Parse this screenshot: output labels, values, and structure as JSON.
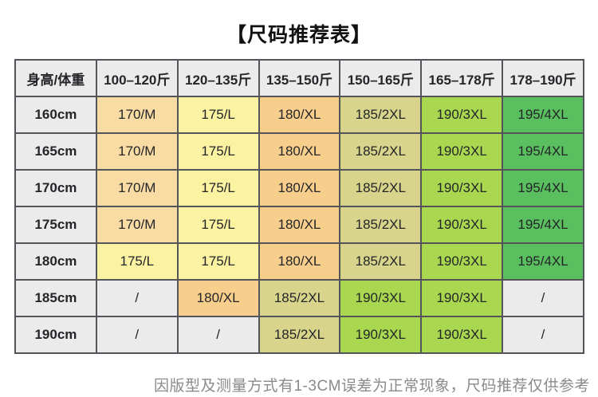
{
  "title": "【尺码推荐表】",
  "footer_note": "因版型及测量方式有1-3CM误差为正常现象，尺码推荐仅供参考",
  "colors": {
    "gray": "#ebebeb",
    "peach": "#f9dca4",
    "yellow": "#fbf2a2",
    "orange": "#f8ce8d",
    "khaki": "#d8d48b",
    "lime": "#a9d750",
    "green": "#5abf5f",
    "border": "#54555a",
    "header_bg": "#ebebeb",
    "cell_text": "#232528",
    "footer_text": "#8a8a8a"
  },
  "chart_data": {
    "type": "table",
    "title": "【尺码推荐表】",
    "columns": [
      "身高/体重",
      "100–120斤",
      "120–135斤",
      "135–150斤",
      "150–165斤",
      "165–178斤",
      "178–190斤"
    ],
    "rows": [
      {
        "label": "160cm",
        "cells": [
          {
            "t": "170/M",
            "c": "peach"
          },
          {
            "t": "175/L",
            "c": "yellow"
          },
          {
            "t": "180/XL",
            "c": "orange"
          },
          {
            "t": "185/2XL",
            "c": "khaki"
          },
          {
            "t": "190/3XL",
            "c": "lime"
          },
          {
            "t": "195/4XL",
            "c": "green"
          }
        ]
      },
      {
        "label": "165cm",
        "cells": [
          {
            "t": "170/M",
            "c": "peach"
          },
          {
            "t": "175/L",
            "c": "yellow"
          },
          {
            "t": "180/XL",
            "c": "orange"
          },
          {
            "t": "185/2XL",
            "c": "khaki"
          },
          {
            "t": "190/3XL",
            "c": "lime"
          },
          {
            "t": "195/4XL",
            "c": "green"
          }
        ]
      },
      {
        "label": "170cm",
        "cells": [
          {
            "t": "170/M",
            "c": "peach"
          },
          {
            "t": "175/L",
            "c": "yellow"
          },
          {
            "t": "180/XL",
            "c": "orange"
          },
          {
            "t": "185/2XL",
            "c": "khaki"
          },
          {
            "t": "190/3XL",
            "c": "lime"
          },
          {
            "t": "195/4XL",
            "c": "green"
          }
        ]
      },
      {
        "label": "175cm",
        "cells": [
          {
            "t": "170/M",
            "c": "peach"
          },
          {
            "t": "175/L",
            "c": "yellow"
          },
          {
            "t": "180/XL",
            "c": "orange"
          },
          {
            "t": "185/2XL",
            "c": "khaki"
          },
          {
            "t": "190/3XL",
            "c": "lime"
          },
          {
            "t": "195/4XL",
            "c": "green"
          }
        ]
      },
      {
        "label": "180cm",
        "cells": [
          {
            "t": "175/L",
            "c": "yellow"
          },
          {
            "t": "175/L",
            "c": "yellow"
          },
          {
            "t": "180/XL",
            "c": "orange"
          },
          {
            "t": "185/2XL",
            "c": "khaki"
          },
          {
            "t": "190/3XL",
            "c": "lime"
          },
          {
            "t": "195/4XL",
            "c": "green"
          }
        ]
      },
      {
        "label": "185cm",
        "cells": [
          {
            "t": "/",
            "c": "gray"
          },
          {
            "t": "180/XL",
            "c": "orange"
          },
          {
            "t": "185/2XL",
            "c": "khaki"
          },
          {
            "t": "190/3XL",
            "c": "lime"
          },
          {
            "t": "190/3XL",
            "c": "lime"
          },
          {
            "t": "/",
            "c": "gray"
          }
        ]
      },
      {
        "label": "190cm",
        "cells": [
          {
            "t": "/",
            "c": "gray"
          },
          {
            "t": "/",
            "c": "gray"
          },
          {
            "t": "185/2XL",
            "c": "khaki"
          },
          {
            "t": "190/3XL",
            "c": "lime"
          },
          {
            "t": "190/3XL",
            "c": "lime"
          },
          {
            "t": "/",
            "c": "gray"
          }
        ]
      }
    ]
  }
}
